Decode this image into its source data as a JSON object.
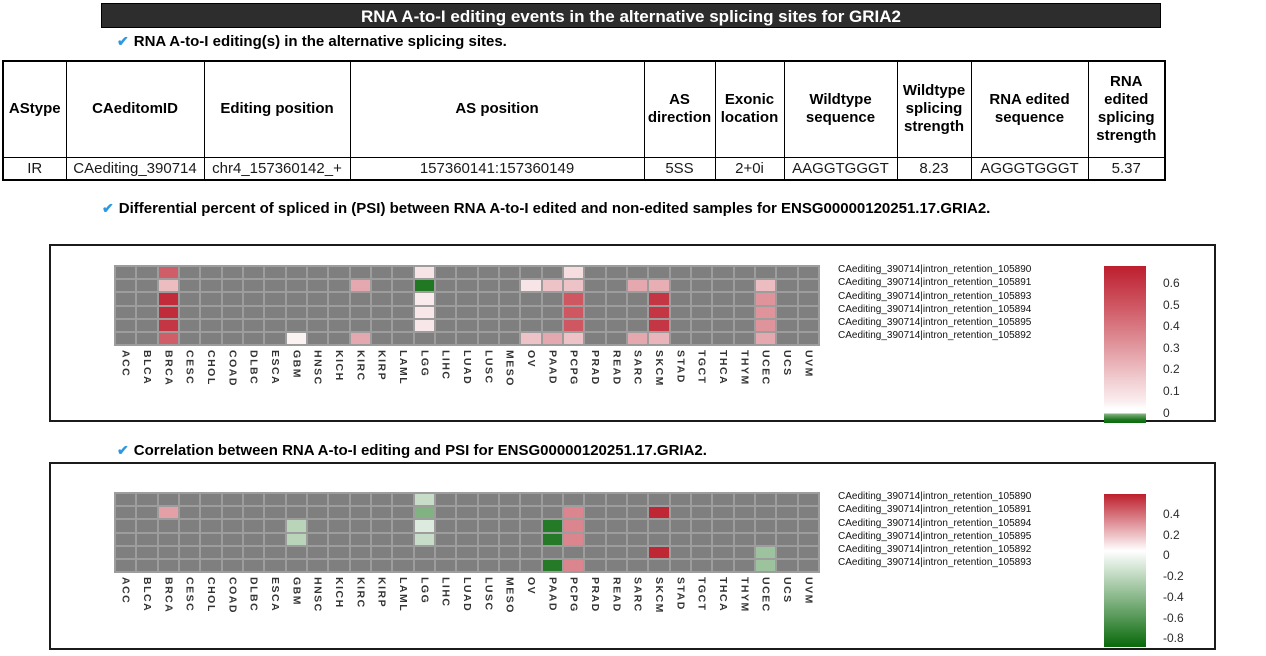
{
  "title_bar": {
    "text": "RNA A-to-I editing events in the alternative splicing sites for GRIA2"
  },
  "icons": {
    "check": "✔"
  },
  "sections": {
    "table_heading": "RNA A-to-I editing(s) in the alternative splicing sites.",
    "psi_heading": "Differential percent of spliced in (PSI) between RNA A-to-I edited and non-edited samples for ENSG00000120251.17.GRIA2.",
    "corr_heading": "Correlation between RNA A-to-I editing and PSI for ENSG00000120251.17.GRIA2."
  },
  "table": {
    "headers": [
      "AStype",
      "CAeditomID",
      "Editing position",
      "AS position",
      "AS\ndirection",
      "Exonic\nlocation",
      "Wildtype\nsequence",
      "Wildtype\nsplicing\nstrength",
      "RNA edited\nsequence",
      "RNA\nedited\nsplicing\nstrength"
    ],
    "rows": [
      [
        "IR",
        "CAediting_390714",
        "chr4_157360142_+",
        "157360141:157360149",
        "5SS",
        "2+0i",
        "AAGGTGGGT",
        "8.23",
        "AGGGTGGGT",
        "5.37"
      ]
    ]
  },
  "chart_data": [
    {
      "type": "heatmap",
      "title": "Differential percent of spliced in (PSI) between RNA A-to-I edited and non-edited samples for ENSG00000120251.17.GRIA2.",
      "categories": [
        "ACC",
        "BLCA",
        "BRCA",
        "CESC",
        "CHOL",
        "COAD",
        "DLBC",
        "ESCA",
        "GBM",
        "HNSC",
        "KICH",
        "KIRC",
        "KIRP",
        "LAML",
        "LGG",
        "LIHC",
        "LUAD",
        "LUSC",
        "MESO",
        "OV",
        "PAAD",
        "PCPG",
        "PRAD",
        "READ",
        "SARC",
        "SKCM",
        "STAD",
        "TGCT",
        "THCA",
        "THYM",
        "UCEC",
        "UCS",
        "UVM"
      ],
      "rows": [
        {
          "label": "CAediting_390714|intron_retention_105890",
          "values": {
            "BRCA": 0.48,
            "LGG": 0.08,
            "PCPG": 0.1
          }
        },
        {
          "label": "CAediting_390714|intron_retention_105891",
          "values": {
            "BRCA": 0.2,
            "KIRC": 0.26,
            "LGG": -0.45,
            "OV": 0.08,
            "PAAD": 0.18,
            "PCPG": 0.18,
            "SARC": 0.26,
            "SKCM": 0.24,
            "UCEC": 0.2
          }
        },
        {
          "label": "CAediting_390714|intron_retention_105893",
          "values": {
            "BRCA": 0.63,
            "LGG": 0.06,
            "PCPG": 0.5,
            "SKCM": 0.6,
            "UCEC": 0.32
          }
        },
        {
          "label": "CAediting_390714|intron_retention_105894",
          "values": {
            "BRCA": 0.63,
            "LGG": 0.07,
            "PCPG": 0.5,
            "SKCM": 0.6,
            "UCEC": 0.32
          }
        },
        {
          "label": "CAediting_390714|intron_retention_105895",
          "values": {
            "BRCA": 0.6,
            "LGG": 0.07,
            "PCPG": 0.5,
            "SKCM": 0.6,
            "UCEC": 0.32
          }
        },
        {
          "label": "CAediting_390714|intron_retention_105892",
          "values": {
            "BRCA": 0.48,
            "GBM": 0.04,
            "KIRC": 0.26,
            "OV": 0.18,
            "PAAD": 0.26,
            "PCPG": 0.18,
            "SARC": 0.26,
            "SKCM": 0.22,
            "UCEC": 0.26
          }
        }
      ],
      "na_color": "#7f7f7f",
      "colorbar": {
        "ticks": [
          "0.6",
          "0.5",
          "0.4",
          "0.3",
          "0.2",
          "0.1",
          "0"
        ],
        "vmax": 0.67,
        "vmin": -0.5,
        "legend_position": "right"
      }
    },
    {
      "type": "heatmap",
      "title": "Correlation between RNA A-to-I editing and PSI for ENSG00000120251.17.GRIA2.",
      "categories": [
        "ACC",
        "BLCA",
        "BRCA",
        "CESC",
        "CHOL",
        "COAD",
        "DLBC",
        "ESCA",
        "GBM",
        "HNSC",
        "KICH",
        "KIRC",
        "KIRP",
        "LAML",
        "LGG",
        "LIHC",
        "LUAD",
        "LUSC",
        "MESO",
        "OV",
        "PAAD",
        "PCPG",
        "PRAD",
        "READ",
        "SARC",
        "SKCM",
        "STAD",
        "TGCT",
        "THCA",
        "THYM",
        "UCEC",
        "UCS",
        "UVM"
      ],
      "rows": [
        {
          "label": "CAediting_390714|intron_retention_105890",
          "values": {
            "LGG": -0.2
          }
        },
        {
          "label": "CAediting_390714|intron_retention_105891",
          "values": {
            "BRCA": 0.22,
            "LGG": -0.45,
            "PCPG": 0.28,
            "SKCM": 0.5
          }
        },
        {
          "label": "CAediting_390714|intron_retention_105894",
          "values": {
            "GBM": -0.25,
            "LGG": -0.12,
            "PAAD": -0.78,
            "PCPG": 0.28
          }
        },
        {
          "label": "CAediting_390714|intron_retention_105895",
          "values": {
            "GBM": -0.25,
            "LGG": -0.2,
            "PAAD": -0.78,
            "PCPG": 0.28
          }
        },
        {
          "label": "CAediting_390714|intron_retention_105892",
          "values": {
            "SKCM": 0.5,
            "UCEC": -0.35
          }
        },
        {
          "label": "CAediting_390714|intron_retention_105893",
          "values": {
            "PAAD": -0.78,
            "PCPG": 0.28,
            "UCEC": -0.35
          }
        }
      ],
      "na_color": "#7f7f7f",
      "colorbar": {
        "ticks": [
          "0.4",
          "0.2",
          "0",
          "-0.2",
          "-0.4",
          "-0.6",
          "-0.8"
        ],
        "vmax": 0.52,
        "vmin": -0.88,
        "legend_position": "right"
      }
    }
  ],
  "colors": {
    "accent_check": "#2e97e2",
    "titlebar_bg": "#2d2d2d",
    "na_cell": "#7f7f7f",
    "grid_gap": "#9d9d9d",
    "red_max": "#bd1e2d",
    "green_min": "#086a0a"
  }
}
